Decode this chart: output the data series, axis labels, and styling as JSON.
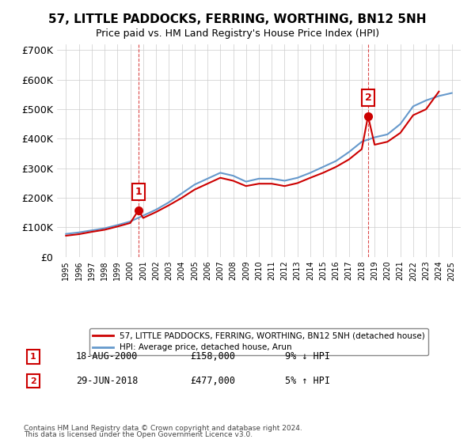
{
  "title": "57, LITTLE PADDOCKS, FERRING, WORTHING, BN12 5NH",
  "subtitle": "Price paid vs. HM Land Registry's House Price Index (HPI)",
  "title_fontsize": 11,
  "subtitle_fontsize": 9,
  "ylabel": "",
  "background_color": "#ffffff",
  "grid_color": "#cccccc",
  "red_line_color": "#cc0000",
  "blue_line_color": "#6699cc",
  "sale_marker_color": "#cc0000",
  "annotation_box_color": "#cc0000",
  "ylim": [
    0,
    720000
  ],
  "yticks": [
    0,
    100000,
    200000,
    300000,
    400000,
    500000,
    600000,
    700000
  ],
  "ytick_labels": [
    "£0",
    "£100K",
    "£200K",
    "£300K",
    "£400K",
    "£500K",
    "£600K",
    "£700K"
  ],
  "sales": [
    {
      "year": 2000.63,
      "price": 158000,
      "label": "1",
      "date": "18-AUG-2000",
      "amount": "£158,000",
      "note": "9% ↓ HPI"
    },
    {
      "year": 2018.49,
      "price": 477000,
      "label": "2",
      "date": "29-JUN-2018",
      "amount": "£477,000",
      "note": "5% ↑ HPI"
    }
  ],
  "legend_entries": [
    {
      "label": "57, LITTLE PADDOCKS, FERRING, WORTHING, BN12 5NH (detached house)",
      "color": "#cc0000"
    },
    {
      "label": "HPI: Average price, detached house, Arun",
      "color": "#6699cc"
    }
  ],
  "footer_lines": [
    "Contains HM Land Registry data © Crown copyright and database right 2024.",
    "This data is licensed under the Open Government Licence v3.0."
  ],
  "hpi_years": [
    1995,
    1996,
    1997,
    1998,
    1999,
    2000,
    2001,
    2002,
    2003,
    2004,
    2005,
    2006,
    2007,
    2008,
    2009,
    2010,
    2011,
    2012,
    2013,
    2014,
    2015,
    2016,
    2017,
    2018,
    2019,
    2020,
    2021,
    2022,
    2023,
    2024,
    2025
  ],
  "hpi_values": [
    78000,
    83000,
    90000,
    97000,
    108000,
    120000,
    140000,
    160000,
    185000,
    215000,
    245000,
    265000,
    285000,
    275000,
    255000,
    265000,
    265000,
    258000,
    268000,
    285000,
    305000,
    325000,
    355000,
    390000,
    405000,
    415000,
    450000,
    510000,
    530000,
    545000,
    555000
  ],
  "red_years": [
    1995,
    1996,
    1997,
    1998,
    1999,
    2000,
    2000.63,
    2001,
    2002,
    2003,
    2004,
    2005,
    2006,
    2007,
    2008,
    2009,
    2010,
    2011,
    2012,
    2013,
    2014,
    2015,
    2016,
    2017,
    2018,
    2018.49,
    2019,
    2020,
    2021,
    2022,
    2023,
    2024
  ],
  "red_values": [
    72000,
    77000,
    85000,
    92000,
    103000,
    115000,
    158000,
    132000,
    152000,
    175000,
    200000,
    228000,
    248000,
    268000,
    258000,
    240000,
    248000,
    248000,
    240000,
    250000,
    268000,
    285000,
    305000,
    330000,
    365000,
    477000,
    380000,
    390000,
    420000,
    480000,
    500000,
    560000
  ]
}
